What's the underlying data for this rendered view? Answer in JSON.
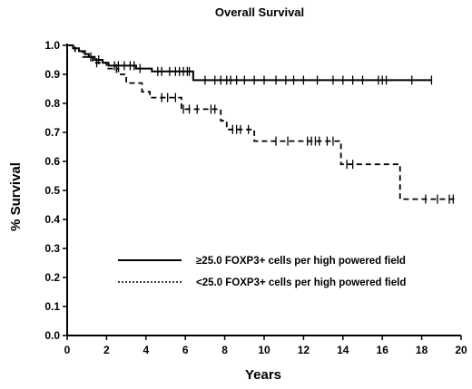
{
  "chart_data": {
    "type": "line",
    "title": "Overall Survival",
    "xlabel": "Years",
    "ylabel": "% Survival",
    "xlim": [
      0,
      20
    ],
    "ylim": [
      0,
      1
    ],
    "xticks": [
      0,
      2,
      4,
      6,
      8,
      10,
      12,
      14,
      16,
      18,
      20
    ],
    "yticks": [
      0.0,
      0.1,
      0.2,
      0.3,
      0.4,
      0.5,
      0.6,
      0.7,
      0.8,
      0.9,
      1.0
    ],
    "ytick_labels": [
      "0.0",
      "0.1",
      "0.2",
      "0.3",
      "0.4",
      "0.5",
      "0.6",
      "0.7",
      "0.8",
      "0.9",
      "1.0"
    ],
    "grid": false,
    "legend_position": "lower-center",
    "series": [
      {
        "name": "≥25.0 FOXP3+ cells per high powered field",
        "style": "solid",
        "steps": [
          [
            0,
            1.0
          ],
          [
            0.3,
            0.99
          ],
          [
            0.6,
            0.98
          ],
          [
            0.9,
            0.97
          ],
          [
            1.1,
            0.96
          ],
          [
            1.4,
            0.95
          ],
          [
            1.8,
            0.94
          ],
          [
            2.1,
            0.93
          ],
          [
            3.5,
            0.92
          ],
          [
            4.3,
            0.91
          ],
          [
            6.4,
            0.88
          ]
        ],
        "censor_x": [
          1.6,
          2.4,
          2.6,
          2.9,
          3.2,
          3.4,
          3.7,
          4.6,
          4.8,
          5.2,
          5.5,
          5.7,
          5.9,
          6.1,
          6.2,
          7.0,
          7.5,
          7.8,
          8.1,
          8.3,
          8.6,
          9.0,
          9.5,
          10.0,
          10.6,
          11.1,
          11.5,
          12.0,
          12.7,
          13.5,
          14.0,
          14.5,
          15.0,
          15.8,
          16.0,
          16.2,
          17.5,
          18.5
        ],
        "end_x": 18.5
      },
      {
        "name": "<25.0 FOXP3+ cells per high powered field",
        "style": "dashed",
        "steps": [
          [
            0,
            1.0
          ],
          [
            0.4,
            0.98
          ],
          [
            0.8,
            0.96
          ],
          [
            1.3,
            0.94
          ],
          [
            2.0,
            0.92
          ],
          [
            2.6,
            0.9
          ],
          [
            3.0,
            0.87
          ],
          [
            3.8,
            0.84
          ],
          [
            4.2,
            0.82
          ],
          [
            5.8,
            0.78
          ],
          [
            7.8,
            0.74
          ],
          [
            8.1,
            0.71
          ],
          [
            9.5,
            0.67
          ],
          [
            13.9,
            0.59
          ],
          [
            16.9,
            0.47
          ]
        ],
        "censor_x": [
          1.2,
          1.5,
          2.5,
          4.8,
          5.1,
          5.5,
          5.9,
          6.2,
          6.6,
          7.3,
          7.5,
          8.4,
          8.6,
          8.8,
          9.2,
          10.6,
          11.2,
          12.2,
          12.4,
          12.6,
          12.8,
          13.2,
          13.5,
          14.2,
          14.5,
          18.2,
          18.8,
          19.4,
          19.6
        ],
        "end_x": 19.8
      }
    ]
  }
}
